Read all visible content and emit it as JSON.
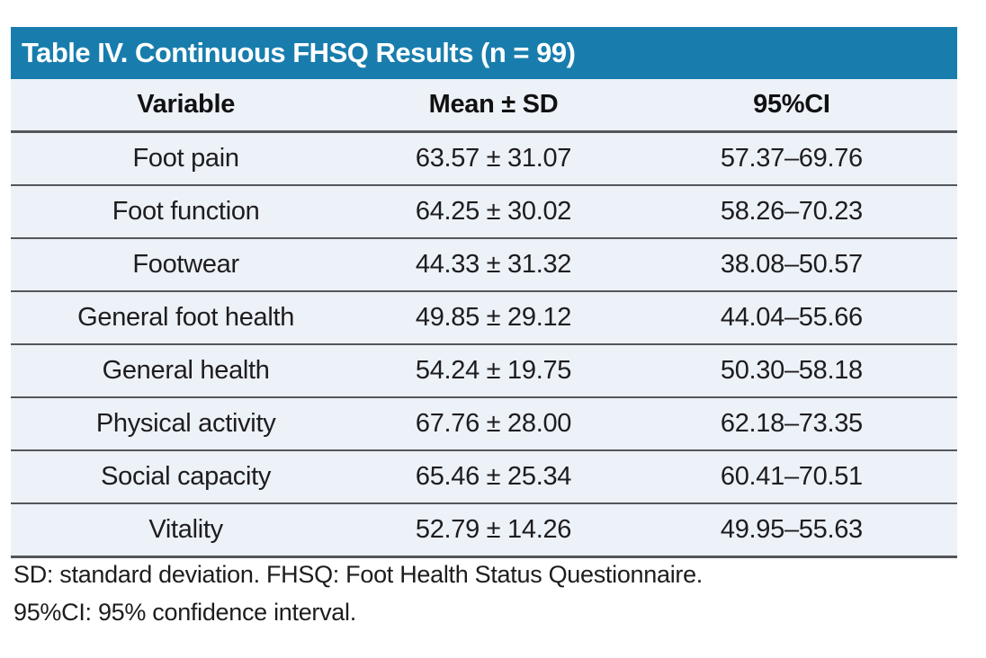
{
  "table": {
    "title": "Table IV. Continuous FHSQ Results (n = 99)",
    "columns": [
      "Variable",
      "Mean ± SD",
      "95%CI"
    ],
    "rows": [
      [
        "Foot pain",
        "63.57 ± 31.07",
        "57.37–69.76"
      ],
      [
        "Foot function",
        "64.25 ± 30.02",
        "58.26–70.23"
      ],
      [
        "Footwear",
        "44.33 ± 31.32",
        "38.08–50.57"
      ],
      [
        "General foot health",
        "49.85 ± 29.12",
        "44.04–55.66"
      ],
      [
        "General health",
        "54.24 ± 19.75",
        "50.30–58.18"
      ],
      [
        "Physical activity",
        "67.76 ± 28.00",
        "62.18–73.35"
      ],
      [
        "Social capacity",
        "65.46 ± 25.34",
        "60.41–70.51"
      ],
      [
        "Vitality",
        "52.79 ± 14.26",
        "49.95–55.63"
      ]
    ],
    "footnotes": [
      "SD: standard deviation. FHSQ: Foot Health Status Questionnaire.",
      "95%CI: 95% confidence interval."
    ],
    "n": 99
  },
  "colors": {
    "title_bar_bg": "#187dad",
    "title_text": "#ffffff",
    "row_bg": "#edf1f8",
    "divider": "#53575c",
    "body_text": "#1d1d1f"
  },
  "chart_data": {
    "type": "table",
    "title": "Table IV. Continuous FHSQ Results (n = 99)",
    "columns": [
      "Variable",
      "Mean ± SD",
      "95%CI"
    ],
    "series": [
      {
        "variable": "Foot pain",
        "mean": 63.57,
        "sd": 31.07,
        "ci_low": 57.37,
        "ci_high": 69.76
      },
      {
        "variable": "Foot function",
        "mean": 64.25,
        "sd": 30.02,
        "ci_low": 58.26,
        "ci_high": 70.23
      },
      {
        "variable": "Footwear",
        "mean": 44.33,
        "sd": 31.32,
        "ci_low": 38.08,
        "ci_high": 50.57
      },
      {
        "variable": "General foot health",
        "mean": 49.85,
        "sd": 29.12,
        "ci_low": 44.04,
        "ci_high": 55.66
      },
      {
        "variable": "General health",
        "mean": 54.24,
        "sd": 19.75,
        "ci_low": 50.3,
        "ci_high": 58.18
      },
      {
        "variable": "Physical activity",
        "mean": 67.76,
        "sd": 28.0,
        "ci_low": 62.18,
        "ci_high": 73.35
      },
      {
        "variable": "Social capacity",
        "mean": 65.46,
        "sd": 25.34,
        "ci_low": 60.41,
        "ci_high": 70.51
      },
      {
        "variable": "Vitality",
        "mean": 52.79,
        "sd": 14.26,
        "ci_low": 49.95,
        "ci_high": 55.63
      }
    ]
  }
}
